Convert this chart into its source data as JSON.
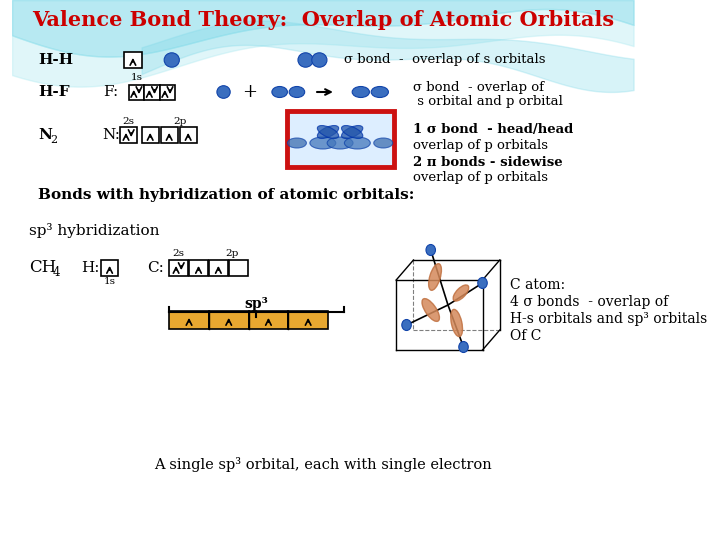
{
  "title": "Valence Bond Theory:  Overlap of Atomic Orbitals",
  "title_color": "#CC0000",
  "title_fontsize": 15,
  "bg_color": "#FFFFFF",
  "wave_color1": "#7DD8E8",
  "wave_color2": "#A8E8F0",
  "text_color": "#000000",
  "sigma_bond_s": "σ bond  -  overlap of s orbitals",
  "sigma_bond_sp_line1": "σ bond  - overlap of",
  "sigma_bond_sp_line2": " s orbital and p orbital",
  "sigma_bond_pp_line1": "1 σ bond  - head/head",
  "sigma_bond_pp_line2": "overlap of p orbitals",
  "pi_bonds_line1": "2 π bonds - sidewise",
  "pi_bonds_line2": "overlap of p orbitals",
  "bonds_hybridization": "Bonds with hybridization of atomic orbitals:",
  "sp3_label": "sp³ hybridization",
  "label_2s": "2s",
  "label_2p": "2p",
  "label_1s": "1s",
  "label_sp3": "sp³",
  "c_atom_line1": "C atom:",
  "c_atom_line2": "4 σ bonds  - overlap of",
  "c_atom_line3": "H-s orbitals and sp³ orbitals",
  "c_atom_line4": "Of C",
  "single_sp3": "A single sp³ orbital, each with single electron",
  "orbital_blue": "#3A6EBF",
  "orbital_blue2": "#5A9ED4",
  "box_orange": "#E8A830",
  "red_box": "#CC1111"
}
